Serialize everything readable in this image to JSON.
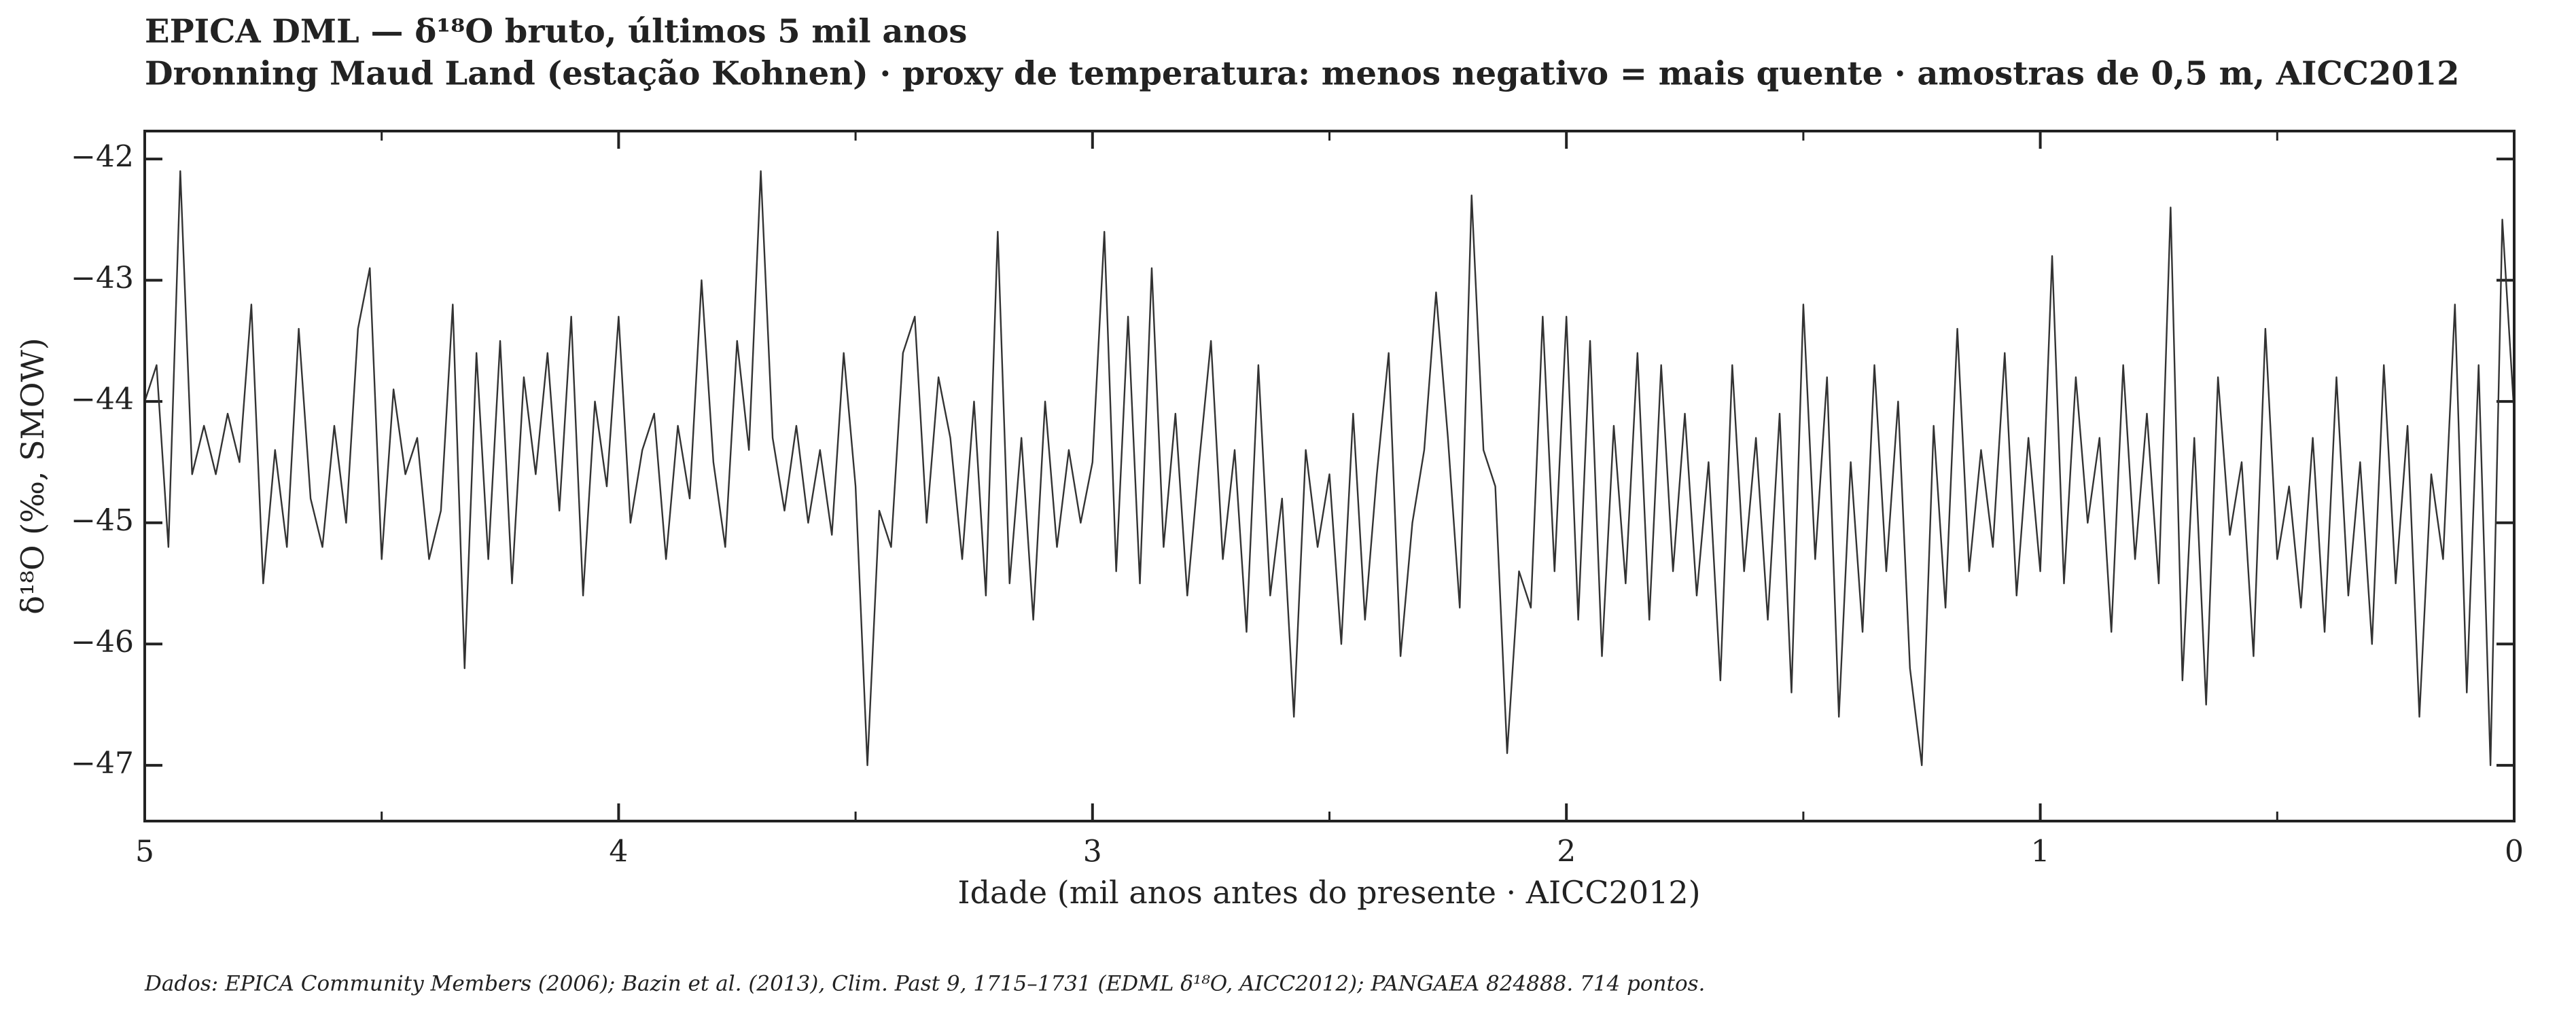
{
  "chart_data": {
    "type": "line",
    "title": "EPICA DML — δ¹⁸O bruto, últimos 5 mil anos",
    "subtitle": "Dronning Maud Land (estação Kohnen) · proxy de temperatura: menos negativo = mais quente · amostras de 0,5 m, AICC2012",
    "xlabel": "Idade (mil anos antes do presente · AICC2012)",
    "ylabel": "δ¹⁸O (‰, SMOW)",
    "caption": "Dados: EPICA Community Members (2006); Bazin et al. (2013), Clim. Past 9, 1715–1731 (EDML δ¹⁸O, AICC2012); PANGAEA 824888. 714 pontos.",
    "color": "#333333",
    "x": [
      5.0,
      4.975,
      4.95,
      4.925,
      4.9,
      4.875,
      4.85,
      4.825,
      4.8,
      4.775,
      4.75,
      4.725,
      4.7,
      4.675,
      4.65,
      4.625,
      4.6,
      4.575,
      4.55,
      4.525,
      4.5,
      4.475,
      4.45,
      4.425,
      4.4,
      4.375,
      4.35,
      4.325,
      4.3,
      4.275,
      4.25,
      4.225,
      4.2,
      4.175,
      4.15,
      4.125,
      4.1,
      4.075,
      4.05,
      4.025,
      4.0,
      3.975,
      3.95,
      3.925,
      3.9,
      3.875,
      3.85,
      3.825,
      3.8,
      3.775,
      3.75,
      3.725,
      3.7,
      3.675,
      3.65,
      3.625,
      3.6,
      3.575,
      3.55,
      3.525,
      3.5,
      3.475,
      3.45,
      3.425,
      3.4,
      3.375,
      3.35,
      3.325,
      3.3,
      3.275,
      3.25,
      3.225,
      3.2,
      3.175,
      3.15,
      3.125,
      3.1,
      3.075,
      3.05,
      3.025,
      3.0,
      2.975,
      2.95,
      2.925,
      2.9,
      2.875,
      2.85,
      2.825,
      2.8,
      2.775,
      2.75,
      2.725,
      2.7,
      2.675,
      2.65,
      2.625,
      2.6,
      2.575,
      2.55,
      2.525,
      2.5,
      2.475,
      2.45,
      2.425,
      2.4,
      2.375,
      2.35,
      2.325,
      2.3,
      2.275,
      2.25,
      2.225,
      2.2,
      2.175,
      2.15,
      2.125,
      2.1,
      2.075,
      2.05,
      2.025,
      2.0,
      1.975,
      1.95,
      1.925,
      1.9,
      1.875,
      1.85,
      1.825,
      1.8,
      1.775,
      1.75,
      1.725,
      1.7,
      1.675,
      1.65,
      1.625,
      1.6,
      1.575,
      1.55,
      1.525,
      1.5,
      1.475,
      1.45,
      1.425,
      1.4,
      1.375,
      1.35,
      1.325,
      1.3,
      1.275,
      1.25,
      1.225,
      1.2,
      1.175,
      1.15,
      1.125,
      1.1,
      1.075,
      1.05,
      1.025,
      1.0,
      0.975,
      0.95,
      0.925,
      0.9,
      0.875,
      0.85,
      0.825,
      0.8,
      0.775,
      0.75,
      0.725,
      0.7,
      0.675,
      0.65,
      0.625,
      0.6,
      0.575,
      0.55,
      0.525,
      0.5,
      0.475,
      0.45,
      0.425,
      0.4,
      0.375,
      0.35,
      0.325,
      0.3,
      0.275,
      0.25,
      0.225,
      0.2,
      0.175,
      0.15,
      0.125,
      0.1,
      0.075,
      0.05,
      0.025,
      0.0
    ],
    "values": [
      -44.0,
      -43.7,
      -45.2,
      -42.1,
      -44.6,
      -44.2,
      -44.6,
      -44.1,
      -44.5,
      -43.2,
      -45.5,
      -44.4,
      -45.2,
      -43.4,
      -44.8,
      -45.2,
      -44.2,
      -45.0,
      -43.4,
      -42.9,
      -45.3,
      -43.9,
      -44.6,
      -44.3,
      -45.3,
      -44.9,
      -43.2,
      -46.2,
      -43.6,
      -45.3,
      -43.5,
      -45.5,
      -43.8,
      -44.6,
      -43.6,
      -44.9,
      -43.3,
      -45.6,
      -44.0,
      -44.7,
      -43.3,
      -45.0,
      -44.4,
      -44.1,
      -45.3,
      -44.2,
      -44.8,
      -43.0,
      -44.5,
      -45.2,
      -43.5,
      -44.4,
      -42.1,
      -44.3,
      -44.9,
      -44.2,
      -45.0,
      -44.4,
      -45.1,
      -43.6,
      -44.7,
      -47.0,
      -44.9,
      -45.2,
      -43.6,
      -43.3,
      -45.0,
      -43.8,
      -44.3,
      -45.3,
      -44.0,
      -45.6,
      -42.6,
      -45.5,
      -44.3,
      -45.8,
      -44.0,
      -45.2,
      -44.4,
      -45.0,
      -44.5,
      -42.6,
      -45.4,
      -43.3,
      -45.5,
      -42.9,
      -45.2,
      -44.1,
      -45.6,
      -44.5,
      -43.5,
      -45.3,
      -44.4,
      -45.9,
      -43.7,
      -45.6,
      -44.8,
      -46.6,
      -44.4,
      -45.2,
      -44.6,
      -46.0,
      -44.1,
      -45.8,
      -44.6,
      -43.6,
      -46.1,
      -45.0,
      -44.4,
      -43.1,
      -44.3,
      -45.7,
      -42.3,
      -44.4,
      -44.7,
      -46.9,
      -45.4,
      -45.7,
      -43.3,
      -45.4,
      -43.3,
      -45.8,
      -43.5,
      -46.1,
      -44.2,
      -45.5,
      -43.6,
      -45.8,
      -43.7,
      -45.4,
      -44.1,
      -45.6,
      -44.5,
      -46.3,
      -43.7,
      -45.4,
      -44.3,
      -45.8,
      -44.1,
      -46.4,
      -43.2,
      -45.3,
      -43.8,
      -46.6,
      -44.5,
      -45.9,
      -43.7,
      -45.4,
      -44.0,
      -46.2,
      -47.0,
      -44.2,
      -45.7,
      -43.4,
      -45.4,
      -44.4,
      -45.2,
      -43.6,
      -45.6,
      -44.3,
      -45.4,
      -42.8,
      -45.5,
      -43.8,
      -45.0,
      -44.3,
      -45.9,
      -43.7,
      -45.3,
      -44.1,
      -45.5,
      -42.4,
      -46.3,
      -44.3,
      -46.5,
      -43.8,
      -45.1,
      -44.5,
      -46.1,
      -43.4,
      -45.3,
      -44.7,
      -45.7,
      -44.3,
      -45.9,
      -43.8,
      -45.6,
      -44.5,
      -46.0,
      -43.7,
      -45.5,
      -44.2,
      -46.6,
      -44.6,
      -45.3,
      -43.2,
      -46.4,
      -43.7,
      -47.0,
      -42.5,
      -44.1
    ],
    "xlim": [
      5,
      0
    ],
    "xticks": [
      5,
      4,
      3,
      2,
      1,
      0
    ],
    "xminorticks": [
      4.5,
      3.5,
      2.5,
      1.5,
      0.5
    ],
    "ylim": [
      -47.46,
      -41.77
    ],
    "yticks": [
      {
        "value": -42,
        "label": "−42"
      },
      {
        "value": -43,
        "label": "−43"
      },
      {
        "value": -44,
        "label": "−44"
      },
      {
        "value": -45,
        "label": "−45"
      },
      {
        "value": -46,
        "label": "−46"
      },
      {
        "value": -47,
        "label": "−47"
      }
    ],
    "grid": false
  }
}
